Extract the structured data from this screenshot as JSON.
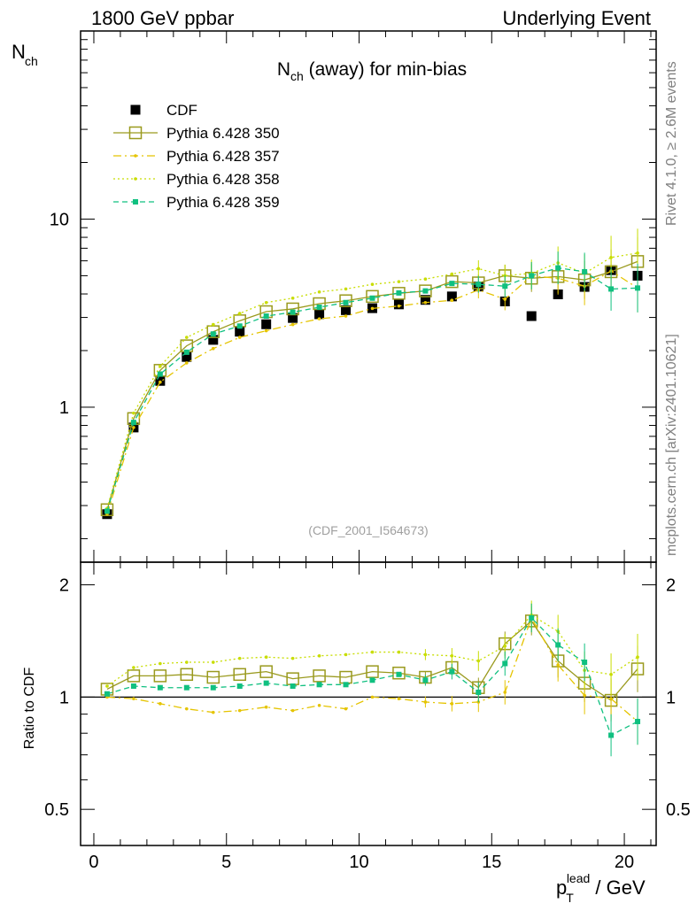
{
  "header": {
    "left": "1800 GeV ppbar",
    "right": "Underlying Event"
  },
  "side": {
    "rivet": "Rivet 4.1.0, ≥ 2.6M events",
    "mcplots": "mcplots.cern.ch [arXiv:2401.10621]"
  },
  "chart_data": {
    "type": "scatter",
    "title": "N_ch (away) for min-bias",
    "analysis_label": "(CDF_2001_I564673)",
    "ylabel_main": "N_ch",
    "ylabel_ratio": "Ratio to CDF",
    "xlabel": "p_T^lead / GeV",
    "yscale_main": "log",
    "ylim_main": [
      0.15,
      100
    ],
    "ylim_ratio": [
      0.4,
      2.3
    ],
    "xlim": [
      -0.5,
      21.2
    ],
    "x_ticks": [
      "0",
      "5",
      "10",
      "15",
      "20"
    ],
    "y_ticks_main": [
      "1",
      "10"
    ],
    "y_ticks_ratio": [
      "0.5",
      "1",
      "2"
    ],
    "legend_position": "top-left",
    "x": [
      0.5,
      1.5,
      2.5,
      3.5,
      4.5,
      5.5,
      6.5,
      7.5,
      8.5,
      9.5,
      10.5,
      11.5,
      12.5,
      13.5,
      14.5,
      15.5,
      16.5,
      17.5,
      18.5,
      19.5,
      20.5
    ],
    "series": [
      {
        "name": "CDF",
        "color": "#000000",
        "style": "solid-square",
        "values": [
          0.27,
          0.78,
          1.38,
          1.85,
          2.28,
          2.52,
          2.76,
          2.98,
          3.12,
          3.28,
          3.36,
          3.52,
          3.72,
          3.88,
          4.38,
          3.65,
          3.05,
          3.98,
          4.36,
          5.35,
          5.0
        ]
      },
      {
        "name": "Pythia 6.428 350",
        "color": "#9a9a1e",
        "style": "solid-open-square",
        "values": [
          0.285,
          0.87,
          1.57,
          2.12,
          2.52,
          2.88,
          3.22,
          3.33,
          3.55,
          3.68,
          3.88,
          4.03,
          4.15,
          4.65,
          4.58,
          5.0,
          4.85,
          4.95,
          4.75,
          5.25,
          5.95
        ],
        "ratio": [
          1.05,
          1.14,
          1.14,
          1.15,
          1.13,
          1.15,
          1.17,
          1.12,
          1.14,
          1.13,
          1.17,
          1.16,
          1.13,
          1.2,
          1.06,
          1.39,
          1.6,
          1.25,
          1.09,
          0.98,
          1.19
        ]
      },
      {
        "name": "Pythia 6.428 357",
        "color": "#e5c400",
        "style": "dashdot-small",
        "values": [
          0.27,
          0.78,
          1.36,
          1.72,
          2.05,
          2.35,
          2.55,
          2.75,
          2.95,
          3.05,
          3.35,
          3.45,
          3.6,
          3.7,
          4.2,
          3.75,
          4.98,
          4.85,
          4.4,
          5.3,
          4.3
        ],
        "ratio": [
          1.0,
          0.99,
          0.96,
          0.93,
          0.91,
          0.92,
          0.94,
          0.92,
          0.95,
          0.93,
          1.0,
          0.99,
          0.97,
          0.96,
          0.97,
          1.03,
          1.63,
          1.22,
          1.01,
          0.99,
          0.86
        ]
      },
      {
        "name": "Pythia 6.428 358",
        "color": "#c8dd00",
        "style": "dotted-small",
        "values": [
          0.29,
          0.93,
          1.65,
          2.35,
          2.75,
          3.15,
          3.6,
          3.8,
          4.1,
          4.25,
          4.5,
          4.65,
          4.8,
          5.1,
          5.45,
          5.0,
          5.15,
          5.85,
          5.15,
          6.25,
          6.6
        ],
        "ratio": [
          1.07,
          1.2,
          1.23,
          1.24,
          1.24,
          1.27,
          1.28,
          1.27,
          1.29,
          1.3,
          1.32,
          1.32,
          1.3,
          1.29,
          1.25,
          1.37,
          1.66,
          1.5,
          1.18,
          1.15,
          1.28
        ]
      },
      {
        "name": "Pythia 6.428 359",
        "color": "#10c080",
        "style": "dashed-small-square",
        "values": [
          0.28,
          0.83,
          1.5,
          1.96,
          2.45,
          2.7,
          3.05,
          3.2,
          3.4,
          3.6,
          3.8,
          4.05,
          4.15,
          4.55,
          4.5,
          4.4,
          5.0,
          5.5,
          5.25,
          4.25,
          4.3
        ],
        "ratio": [
          1.02,
          1.07,
          1.06,
          1.06,
          1.06,
          1.07,
          1.09,
          1.07,
          1.08,
          1.08,
          1.11,
          1.15,
          1.11,
          1.17,
          1.03,
          1.23,
          1.63,
          1.38,
          1.24,
          0.79,
          0.86
        ]
      }
    ]
  }
}
